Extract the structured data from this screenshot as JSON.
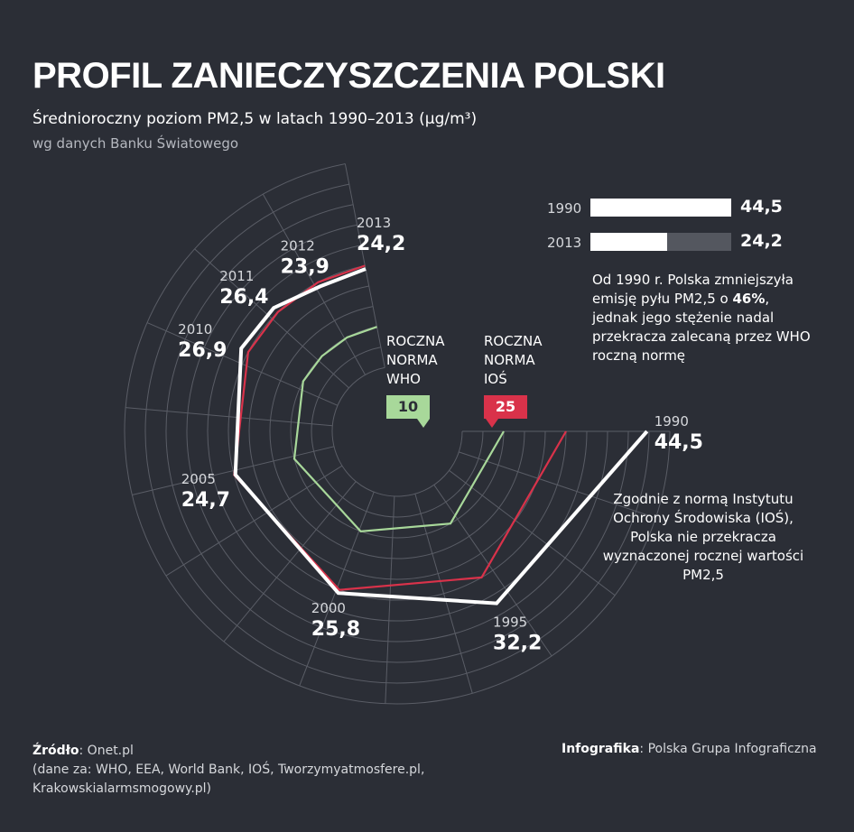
{
  "title": "PROFIL ZANIECZYSZCZENIA POLSKI",
  "subtitle": "Średnioroczny poziom PM2,5 w latach 1990–2013 (µg/m³)",
  "subtitle2": "wg danych Banku Światowego",
  "comparison": {
    "rows": [
      {
        "year": "1990",
        "value_label": "44,5",
        "value": 44.5
      },
      {
        "year": "2013",
        "value_label": "24,2",
        "value": 24.2
      }
    ],
    "max": 44.5
  },
  "note_reduction": {
    "before": "Od 1990 r. Polska zmniejszyła emisję pyłu PM2,5 o ",
    "highlight": "46%",
    "after": ", jednak jego stężenie nadal przekracza zalecaną przez WHO roczną normę"
  },
  "note_ios": "Zgodnie z normą Instytutu Ochrony Środowiska (IOŚ), Polska nie przekracza wyznaczonej rocznej wartości PM2,5",
  "norm_who": {
    "label": "ROCZNA NORMA WHO",
    "line1": "ROCZNA",
    "line2": "NORMA",
    "line3": "WHO",
    "value_label": "10",
    "value": 10,
    "color": "#a8d89a"
  },
  "norm_ios": {
    "label": "ROCZNA NORMA IOŚ",
    "line1": "ROCZNA",
    "line2": "NORMA",
    "line3": "IOŚ",
    "value_label": "25",
    "value": 25,
    "color": "#d9324a"
  },
  "footer": {
    "source_label": "Źródło",
    "source_text": ": Onet.pl",
    "source_detail": "(dane za: WHO, EEA, World Bank, IOŚ, Tworzymyatmosfere.pl, Krakowskialarmsmogowy.pl)",
    "credit_label": "Infografika",
    "credit_text": ": Polska Grupa Infograficzna"
  },
  "chart_data": {
    "type": "radial-line",
    "series": [
      {
        "years": [
          "1990",
          "1995",
          "2000",
          "2005",
          "2010",
          "2011",
          "2012",
          "2013"
        ],
        "values": [
          44.5,
          32.2,
          25.8,
          24.7,
          26.9,
          26.4,
          23.9,
          24.2
        ],
        "labels": [
          "44,5",
          "32,2",
          "25,8",
          "24,7",
          "26,9",
          "26,4",
          "23,9",
          "24,2"
        ],
        "color": "#ffffff"
      }
    ],
    "reference_lines": [
      {
        "value": 10,
        "color": "#a8d89a"
      },
      {
        "value": 25,
        "color": "#d9324a"
      }
    ],
    "range": [
      0,
      50
    ],
    "colors": {
      "background": "#2b2e36",
      "grid": "#5a5d66",
      "data": "#ffffff"
    }
  }
}
